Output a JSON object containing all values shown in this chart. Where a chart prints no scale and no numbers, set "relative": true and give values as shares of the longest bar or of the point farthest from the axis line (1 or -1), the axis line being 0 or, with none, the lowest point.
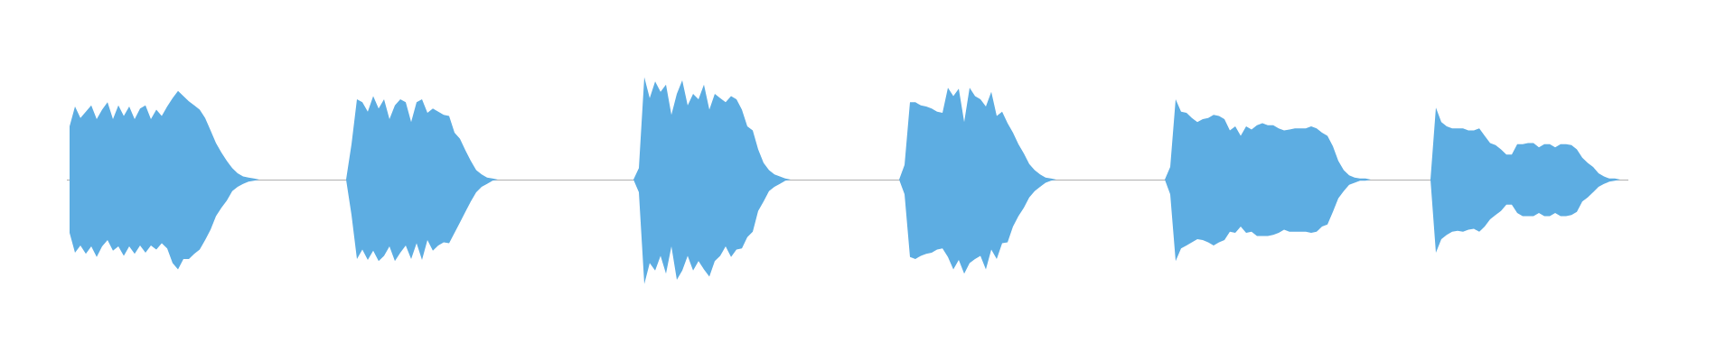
{
  "chart_data": {
    "type": "area",
    "relative": true,
    "categories": [
      null,
      null,
      null,
      null,
      null,
      null,
      null,
      null,
      null,
      null,
      null,
      null,
      null,
      null,
      null,
      null,
      null,
      null,
      null,
      null,
      null,
      null,
      null,
      null,
      null,
      null,
      null,
      null,
      null,
      null,
      null,
      null,
      null,
      null,
      null,
      null,
      null,
      null,
      null,
      null,
      null,
      null,
      null,
      null,
      null,
      null,
      null,
      null,
      null,
      null,
      null,
      null,
      null,
      null,
      null,
      null,
      null,
      null,
      null,
      null,
      null,
      null,
      null,
      null,
      null,
      null,
      null,
      null,
      null,
      null,
      null,
      null,
      null,
      null,
      null,
      null,
      null,
      null,
      null,
      null,
      null,
      null,
      null,
      null,
      null,
      null,
      null,
      null,
      null,
      null,
      null,
      null,
      null,
      null,
      null,
      null,
      null,
      null,
      null,
      null,
      null,
      null,
      null,
      null,
      null,
      null,
      null,
      null,
      null,
      null,
      null,
      null,
      null,
      null,
      null,
      null,
      null,
      null,
      null,
      null,
      null,
      null,
      null,
      null,
      null,
      null,
      null,
      null,
      null,
      null,
      null,
      null,
      null,
      null,
      null,
      null,
      null,
      null,
      null,
      null,
      null,
      null,
      null,
      null,
      null,
      null,
      null,
      null,
      null,
      null,
      null,
      null,
      null,
      null,
      null,
      null,
      null,
      null,
      null,
      null,
      null,
      null,
      null,
      null,
      null,
      null,
      null,
      null,
      null,
      null,
      null,
      null,
      null,
      null,
      null,
      null,
      null,
      null,
      null,
      null,
      null,
      null,
      null,
      null,
      null,
      null,
      null,
      null,
      null,
      null,
      null,
      null,
      null,
      null,
      null,
      null,
      null,
      null,
      null,
      null,
      null,
      null,
      null,
      null,
      null,
      null,
      null,
      null,
      null,
      null,
      null,
      null,
      null,
      null,
      null,
      null,
      null,
      null,
      null,
      null,
      null,
      null,
      null,
      null,
      null,
      null,
      null,
      null,
      null,
      null,
      null,
      null,
      null,
      null,
      null,
      null,
      null,
      null,
      null,
      null,
      null,
      null,
      null,
      null,
      null,
      null,
      null,
      null,
      null,
      null,
      null,
      null,
      null,
      null,
      null,
      null,
      null,
      null,
      null,
      null,
      null,
      null,
      null,
      null,
      null,
      null,
      null,
      null,
      null,
      null,
      null,
      null,
      null,
      null,
      null,
      null,
      null,
      null,
      null,
      null,
      null,
      null,
      null,
      null,
      null,
      null,
      null,
      null
    ],
    "series": [
      {
        "color": "#5dade2",
        "values": [
          0.51,
          0.7,
          0.59,
          0.65,
          0.71,
          0.58,
          0.67,
          0.74,
          0.58,
          0.71,
          0.61,
          0.7,
          0.58,
          0.68,
          0.71,
          0.58,
          0.67,
          0.61,
          0.7,
          0.78,
          0.85,
          0.8,
          0.75,
          0.71,
          0.67,
          0.59,
          0.47,
          0.35,
          0.26,
          0.18,
          0.11,
          0.06,
          0.03,
          0.02,
          0.01,
          0,
          null,
          null,
          null,
          null,
          null,
          null,
          null,
          null,
          null,
          null,
          null,
          null,
          null,
          null,
          null,
          0,
          0.34,
          0.77,
          0.74,
          0.65,
          0.8,
          0.68,
          0.77,
          0.58,
          0.71,
          0.77,
          0.74,
          0.55,
          0.74,
          0.77,
          0.64,
          0.68,
          0.65,
          0.62,
          0.61,
          0.45,
          0.39,
          0.28,
          0.18,
          0.09,
          0.05,
          0.02,
          0.01,
          0,
          null,
          null,
          null,
          null,
          null,
          null,
          null,
          null,
          null,
          null,
          null,
          null,
          null,
          null,
          null,
          null,
          null,
          null,
          null,
          null,
          null,
          null,
          null,
          null,
          0,
          0.11,
          0.98,
          0.78,
          0.94,
          0.84,
          0.91,
          0.62,
          0.82,
          0.95,
          0.71,
          0.82,
          0.77,
          0.91,
          0.67,
          0.82,
          0.78,
          0.74,
          0.8,
          0.77,
          0.67,
          0.51,
          0.47,
          0.29,
          0.16,
          0.09,
          0.05,
          0.03,
          0.01,
          0,
          null,
          null,
          null,
          null,
          null,
          null,
          null,
          null,
          null,
          null,
          null,
          null,
          null,
          null,
          null,
          null,
          null,
          null,
          null,
          0,
          0.14,
          0.74,
          0.74,
          0.71,
          0.7,
          0.68,
          0.65,
          0.64,
          0.88,
          0.8,
          0.87,
          0.55,
          0.88,
          0.8,
          0.77,
          0.7,
          0.84,
          0.61,
          0.65,
          0.54,
          0.45,
          0.34,
          0.25,
          0.15,
          0.09,
          0.05,
          0.02,
          0.01,
          0,
          null,
          null,
          null,
          null,
          null,
          null,
          null,
          null,
          null,
          null,
          null,
          null,
          null,
          null,
          null,
          null,
          null,
          null,
          null,
          0,
          0.12,
          0.77,
          0.65,
          0.64,
          0.59,
          0.55,
          0.58,
          0.59,
          0.62,
          0.61,
          0.58,
          0.47,
          0.51,
          0.42,
          0.51,
          0.48,
          0.52,
          0.54,
          0.52,
          0.52,
          0.49,
          0.47,
          0.48,
          0.49,
          0.49,
          0.49,
          0.51,
          0.49,
          0.45,
          0.42,
          0.32,
          0.18,
          0.09,
          0.04,
          0.02,
          0.01,
          0.01,
          0,
          null,
          null,
          null,
          null,
          null,
          null,
          null,
          null,
          null,
          null,
          0,
          0.69,
          0.55,
          0.51,
          0.49,
          0.49,
          0.49,
          0.47,
          0.47,
          0.49,
          0.42,
          0.35,
          0.33,
          0.29,
          0.24,
          0.24,
          0.34,
          0.34,
          0.35,
          0.35,
          0.31,
          0.34,
          0.34,
          0.31,
          0.34,
          0.34,
          0.33,
          0.29,
          0.21,
          0.16,
          0.12,
          0.06,
          0.03,
          0.01,
          0.01,
          0,
          0
        ]
      },
      {
        "color": "#5dade2",
        "values": [
          -0.51,
          -0.7,
          -0.63,
          -0.71,
          -0.64,
          -0.74,
          -0.64,
          -0.58,
          -0.68,
          -0.64,
          -0.73,
          -0.64,
          -0.71,
          -0.63,
          -0.7,
          -0.63,
          -0.67,
          -0.61,
          -0.66,
          -0.8,
          -0.86,
          -0.76,
          -0.76,
          -0.71,
          -0.67,
          -0.58,
          -0.48,
          -0.35,
          -0.27,
          -0.2,
          -0.11,
          -0.07,
          -0.04,
          -0.02,
          -0.01,
          0,
          null,
          null,
          null,
          null,
          null,
          null,
          null,
          null,
          null,
          null,
          null,
          null,
          null,
          null,
          null,
          0,
          -0.34,
          -0.76,
          -0.67,
          -0.77,
          -0.68,
          -0.78,
          -0.73,
          -0.64,
          -0.78,
          -0.7,
          -0.63,
          -0.76,
          -0.61,
          -0.77,
          -0.58,
          -0.68,
          -0.63,
          -0.6,
          -0.61,
          -0.51,
          -0.41,
          -0.31,
          -0.21,
          -0.12,
          -0.07,
          -0.04,
          -0.01,
          0,
          null,
          null,
          null,
          null,
          null,
          null,
          null,
          null,
          null,
          null,
          null,
          null,
          null,
          null,
          null,
          null,
          null,
          null,
          null,
          null,
          null,
          null,
          null,
          null,
          0,
          -0.12,
          -1.0,
          -0.8,
          -0.87,
          -0.73,
          -0.9,
          -0.64,
          -0.96,
          -0.87,
          -0.73,
          -0.87,
          -0.78,
          -0.86,
          -0.93,
          -0.78,
          -0.73,
          -0.64,
          -0.74,
          -0.67,
          -0.66,
          -0.55,
          -0.5,
          -0.3,
          -0.21,
          -0.11,
          -0.07,
          -0.04,
          -0.01,
          0,
          null,
          null,
          null,
          null,
          null,
          null,
          null,
          null,
          null,
          null,
          null,
          null,
          null,
          null,
          null,
          null,
          null,
          null,
          null,
          0,
          -0.14,
          -0.74,
          -0.76,
          -0.73,
          -0.71,
          -0.7,
          -0.67,
          -0.66,
          -0.74,
          -0.86,
          -0.77,
          -0.9,
          -0.8,
          -0.76,
          -0.73,
          -0.86,
          -0.67,
          -0.76,
          -0.61,
          -0.6,
          -0.45,
          -0.35,
          -0.27,
          -0.17,
          -0.11,
          -0.07,
          -0.03,
          -0.01,
          0,
          null,
          null,
          null,
          null,
          null,
          null,
          null,
          null,
          null,
          null,
          null,
          null,
          null,
          null,
          null,
          null,
          null,
          null,
          null,
          0,
          -0.14,
          -0.78,
          -0.66,
          -0.63,
          -0.6,
          -0.57,
          -0.58,
          -0.6,
          -0.63,
          -0.6,
          -0.58,
          -0.5,
          -0.51,
          -0.45,
          -0.51,
          -0.5,
          -0.54,
          -0.54,
          -0.54,
          -0.53,
          -0.51,
          -0.48,
          -0.5,
          -0.5,
          -0.5,
          -0.5,
          -0.51,
          -0.5,
          -0.45,
          -0.43,
          -0.31,
          -0.18,
          -0.11,
          -0.05,
          -0.03,
          -0.01,
          -0.01,
          0,
          null,
          null,
          null,
          null,
          null,
          null,
          null,
          null,
          null,
          null,
          0,
          -0.7,
          -0.57,
          -0.53,
          -0.5,
          -0.49,
          -0.5,
          -0.48,
          -0.47,
          -0.5,
          -0.45,
          -0.38,
          -0.34,
          -0.3,
          -0.24,
          -0.24,
          -0.32,
          -0.35,
          -0.35,
          -0.35,
          -0.32,
          -0.35,
          -0.35,
          -0.32,
          -0.35,
          -0.35,
          -0.34,
          -0.31,
          -0.21,
          -0.17,
          -0.12,
          -0.07,
          -0.04,
          -0.02,
          -0.01,
          0,
          0
        ]
      }
    ]
  }
}
